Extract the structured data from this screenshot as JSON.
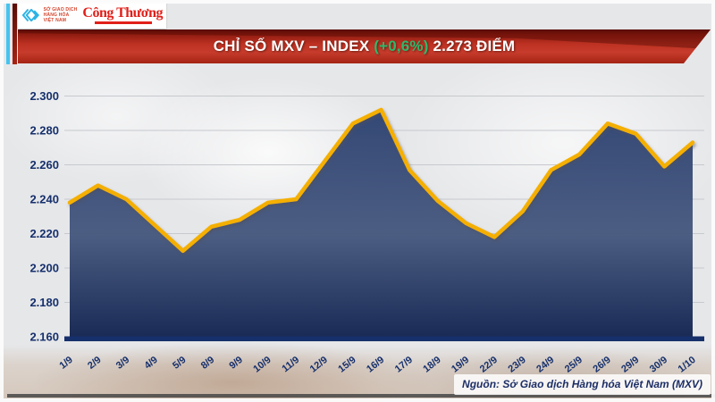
{
  "header": {
    "logo": {
      "mxv_lines": [
        "SỞ GIAO DỊCH",
        "HÀNG HÓA",
        "VIỆT NAM"
      ],
      "congthuong_label": "Công Thương"
    },
    "banner": {
      "title_prefix": "CHỈ SỐ MXV – INDEX ",
      "change": "(+0,6%)",
      "title_suffix": " 2.273 ĐIỂM"
    }
  },
  "chart_data": {
    "type": "area",
    "title": "CHỈ SỐ MXV – INDEX (+0,6%) 2.273 ĐIỂM",
    "xlabel": "",
    "ylabel": "",
    "grid": true,
    "legend": "none",
    "categories": [
      "1/9",
      "2/9",
      "3/9",
      "4/9",
      "5/9",
      "8/9",
      "9/9",
      "10/9",
      "11/9",
      "12/9",
      "15/9",
      "16/9",
      "17/9",
      "18/9",
      "19/9",
      "22/9",
      "23/9",
      "24/9",
      "25/9",
      "26/9",
      "29/9",
      "30/9",
      "1/10"
    ],
    "values": [
      2238,
      2248,
      2240,
      2225,
      2210,
      2224,
      2228,
      2238,
      2240,
      2262,
      2284,
      2292,
      2257,
      2239,
      2226,
      2218,
      2233,
      2257,
      2266,
      2284,
      2278,
      2259,
      2273
    ],
    "last_value_label": "2.273",
    "change_label": "(+0,6%)",
    "ylim": [
      2160,
      2300
    ],
    "yticks": [
      {
        "v": 2300,
        "label": "2.300"
      },
      {
        "v": 2280,
        "label": "2.280"
      },
      {
        "v": 2260,
        "label": "2.260"
      },
      {
        "v": 2240,
        "label": "2.240"
      },
      {
        "v": 2220,
        "label": "2.220"
      },
      {
        "v": 2200,
        "label": "2.200"
      },
      {
        "v": 2180,
        "label": "2.180"
      },
      {
        "v": 2160,
        "label": "2.160"
      }
    ],
    "colors": {
      "line": "#f4af00",
      "area_top": "#2e4372",
      "area_mid": "#47597f",
      "area_bottom": "#132551",
      "axis": "#16306c",
      "gridline": "#c6c9ce",
      "tick_text": "#16306c"
    }
  },
  "source": {
    "label": "Nguồn: Sở Giao dịch Hàng hóa Việt Nam (MXV)"
  },
  "accents": {
    "banner_red": "#c63b2b",
    "change_green": "#2eb96a",
    "cyan_bar": "#45c4ef",
    "maroon_bar": "#a62413",
    "congthuong_red": "#e0201a"
  }
}
